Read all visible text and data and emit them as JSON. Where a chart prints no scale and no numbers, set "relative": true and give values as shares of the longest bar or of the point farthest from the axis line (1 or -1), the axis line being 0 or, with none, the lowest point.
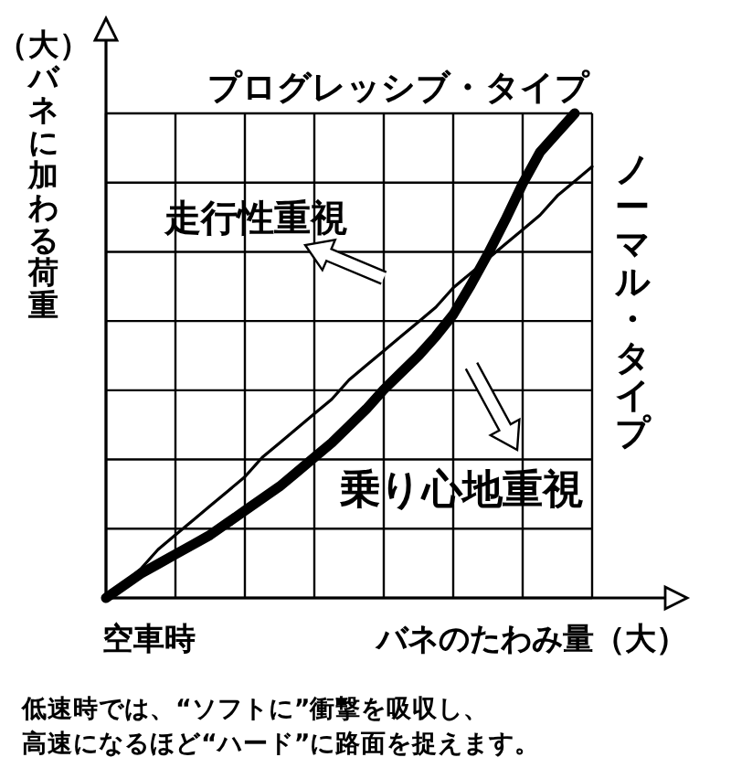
{
  "chart_data": {
    "type": "line",
    "relative": true,
    "grid": true,
    "legend": false,
    "ylabel": "（大）バネに加わる荷重",
    "xlabel": "バネのたわみ量（大）",
    "categories": [
      null,
      null,
      null,
      null,
      null,
      null,
      null,
      null,
      null,
      null,
      null,
      null,
      null,
      null,
      null,
      null,
      null,
      null,
      null,
      null,
      null,
      null,
      null,
      null,
      null,
      null,
      null,
      null,
      null
    ],
    "series": [
      {
        "name": "プログレッシブ・タイプ",
        "color": "#000000",
        "values": [
          0,
          0.025,
          0.05,
          0.07,
          0.09,
          0.11,
          0.13,
          0.155,
          0.18,
          0.205,
          0.23,
          0.26,
          0.29,
          0.32,
          0.355,
          0.39,
          0.43,
          0.465,
          0.5,
          0.54,
          0.585,
          0.645,
          0.71,
          0.78,
          0.855,
          0.92,
          0.96,
          1.0,
          null
        ]
      },
      {
        "name": "ノーマル・タイプ",
        "color": "#000000",
        "values": [
          0,
          0.03,
          0.06,
          0.1,
          0.13,
          0.16,
          0.19,
          0.22,
          0.25,
          0.29,
          0.32,
          0.35,
          0.38,
          0.41,
          0.45,
          0.48,
          0.51,
          0.54,
          0.57,
          0.6,
          0.64,
          0.67,
          0.7,
          0.73,
          0.76,
          0.79,
          0.83,
          0.86,
          0.89
        ]
      }
    ],
    "annotations": [
      "走行性重視",
      "乗り心地重視",
      "空車時",
      "低速時では、“ソフトに”衝撃を吸収し、",
      "高速になるほど“ハード”に路面を捉えます。"
    ]
  }
}
